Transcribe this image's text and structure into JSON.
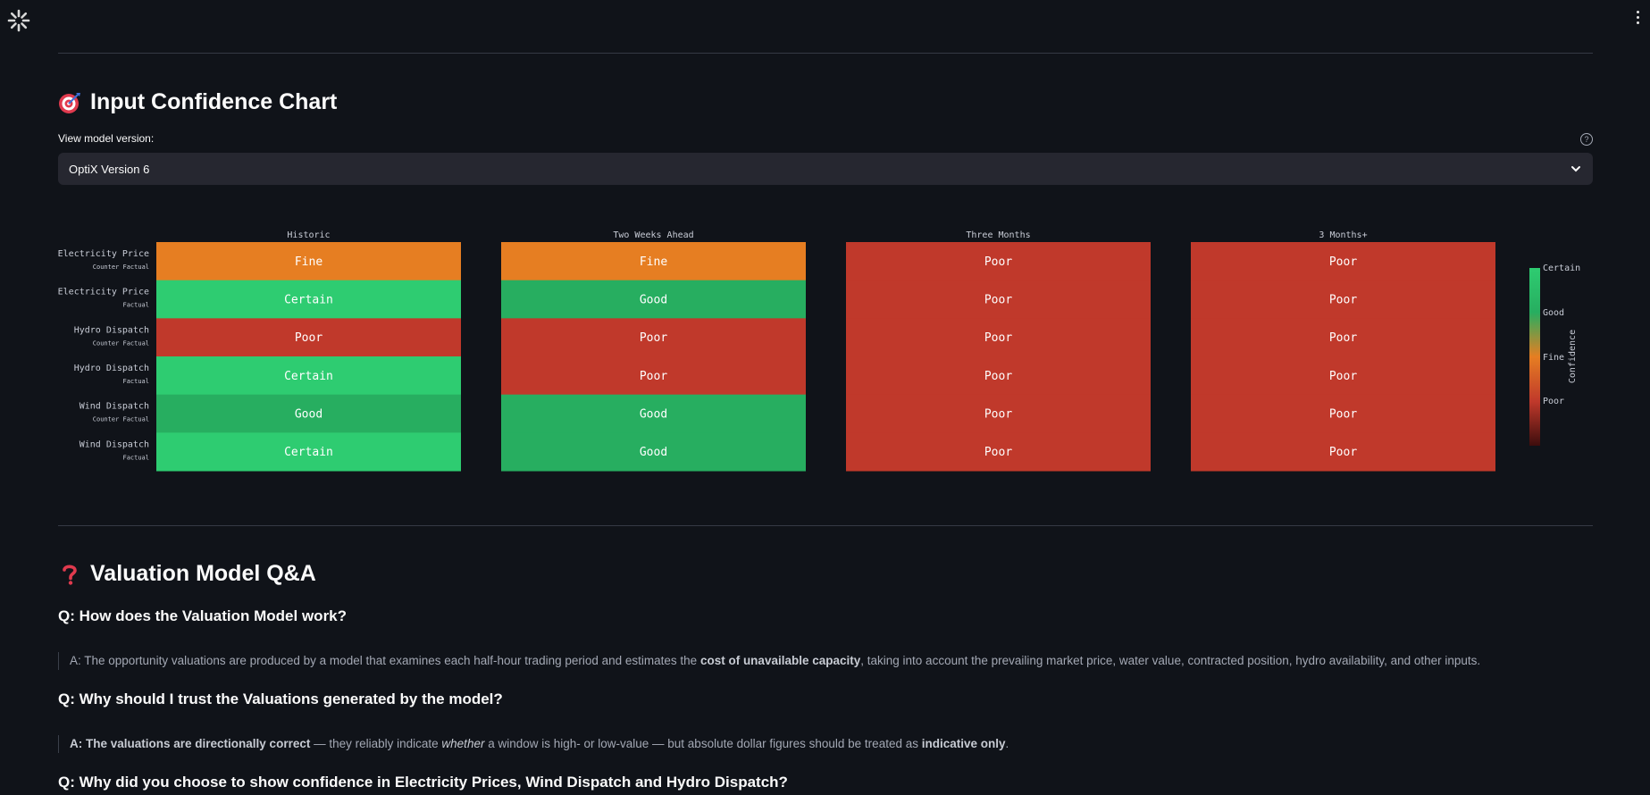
{
  "header": {
    "menu_icon": "vertical-dots-icon",
    "logo_icon": "spinner-logo-icon"
  },
  "confidence_section": {
    "title": "Input Confidence Chart",
    "title_icon": "target-emoji-icon",
    "select_label": "View model version:",
    "select_value": "OptiX Version 6"
  },
  "chart_data": {
    "type": "heatmap",
    "columns": [
      "Historic",
      "Two Weeks Ahead",
      "Three Months",
      "3 Months+"
    ],
    "rows": [
      {
        "label": "Electricity Price",
        "sublabel": "Counter Factual"
      },
      {
        "label": "Electricity Price",
        "sublabel": "Factual"
      },
      {
        "label": "Hydro Dispatch",
        "sublabel": "Counter Factual"
      },
      {
        "label": "Hydro Dispatch",
        "sublabel": "Factual"
      },
      {
        "label": "Wind Dispatch",
        "sublabel": "Counter Factual"
      },
      {
        "label": "Wind Dispatch",
        "sublabel": "Factual"
      }
    ],
    "values": [
      [
        "Fine",
        "Fine",
        "Poor",
        "Poor"
      ],
      [
        "Certain",
        "Good",
        "Poor",
        "Poor"
      ],
      [
        "Poor",
        "Poor",
        "Poor",
        "Poor"
      ],
      [
        "Certain",
        "Poor",
        "Poor",
        "Poor"
      ],
      [
        "Good",
        "Good",
        "Poor",
        "Poor"
      ],
      [
        "Certain",
        "Good",
        "Poor",
        "Poor"
      ]
    ],
    "colors": {
      "Certain": "#2ecc71",
      "Good": "#27ae60",
      "Fine": "#e67e22",
      "Poor": "#c0392b"
    },
    "colorbar": {
      "title": "Confidence",
      "ticks": [
        "Certain",
        "Good",
        "Fine",
        "Poor"
      ]
    }
  },
  "qa_section": {
    "title": "Valuation Model Q&A",
    "title_icon": "question-mark-emoji-icon",
    "items": [
      {
        "q": "Q: How does the Valuation Model work?",
        "a_pre": "A: The opportunity valuations are produced by a model that examines each half-hour trading period and estimates the ",
        "a_bold": "cost of unavailable capacity",
        "a_post": ", taking into account the prevailing market price, water value, contracted position, hydro availability, and other inputs."
      },
      {
        "q": "Q: Why should I trust the Valuations generated by the model?",
        "a_bold1": "A: The valuations are directionally correct",
        "a_mid1": " — they reliably indicate ",
        "a_italic": "whether",
        "a_mid2": " a window is high- or low-value — but absolute dollar figures should be treated as ",
        "a_bold2": "indicative only",
        "a_end": "."
      },
      {
        "q": "Q: Why did you choose to show confidence in Electricity Prices, Wind Dispatch and Hydro Dispatch?"
      }
    ]
  }
}
